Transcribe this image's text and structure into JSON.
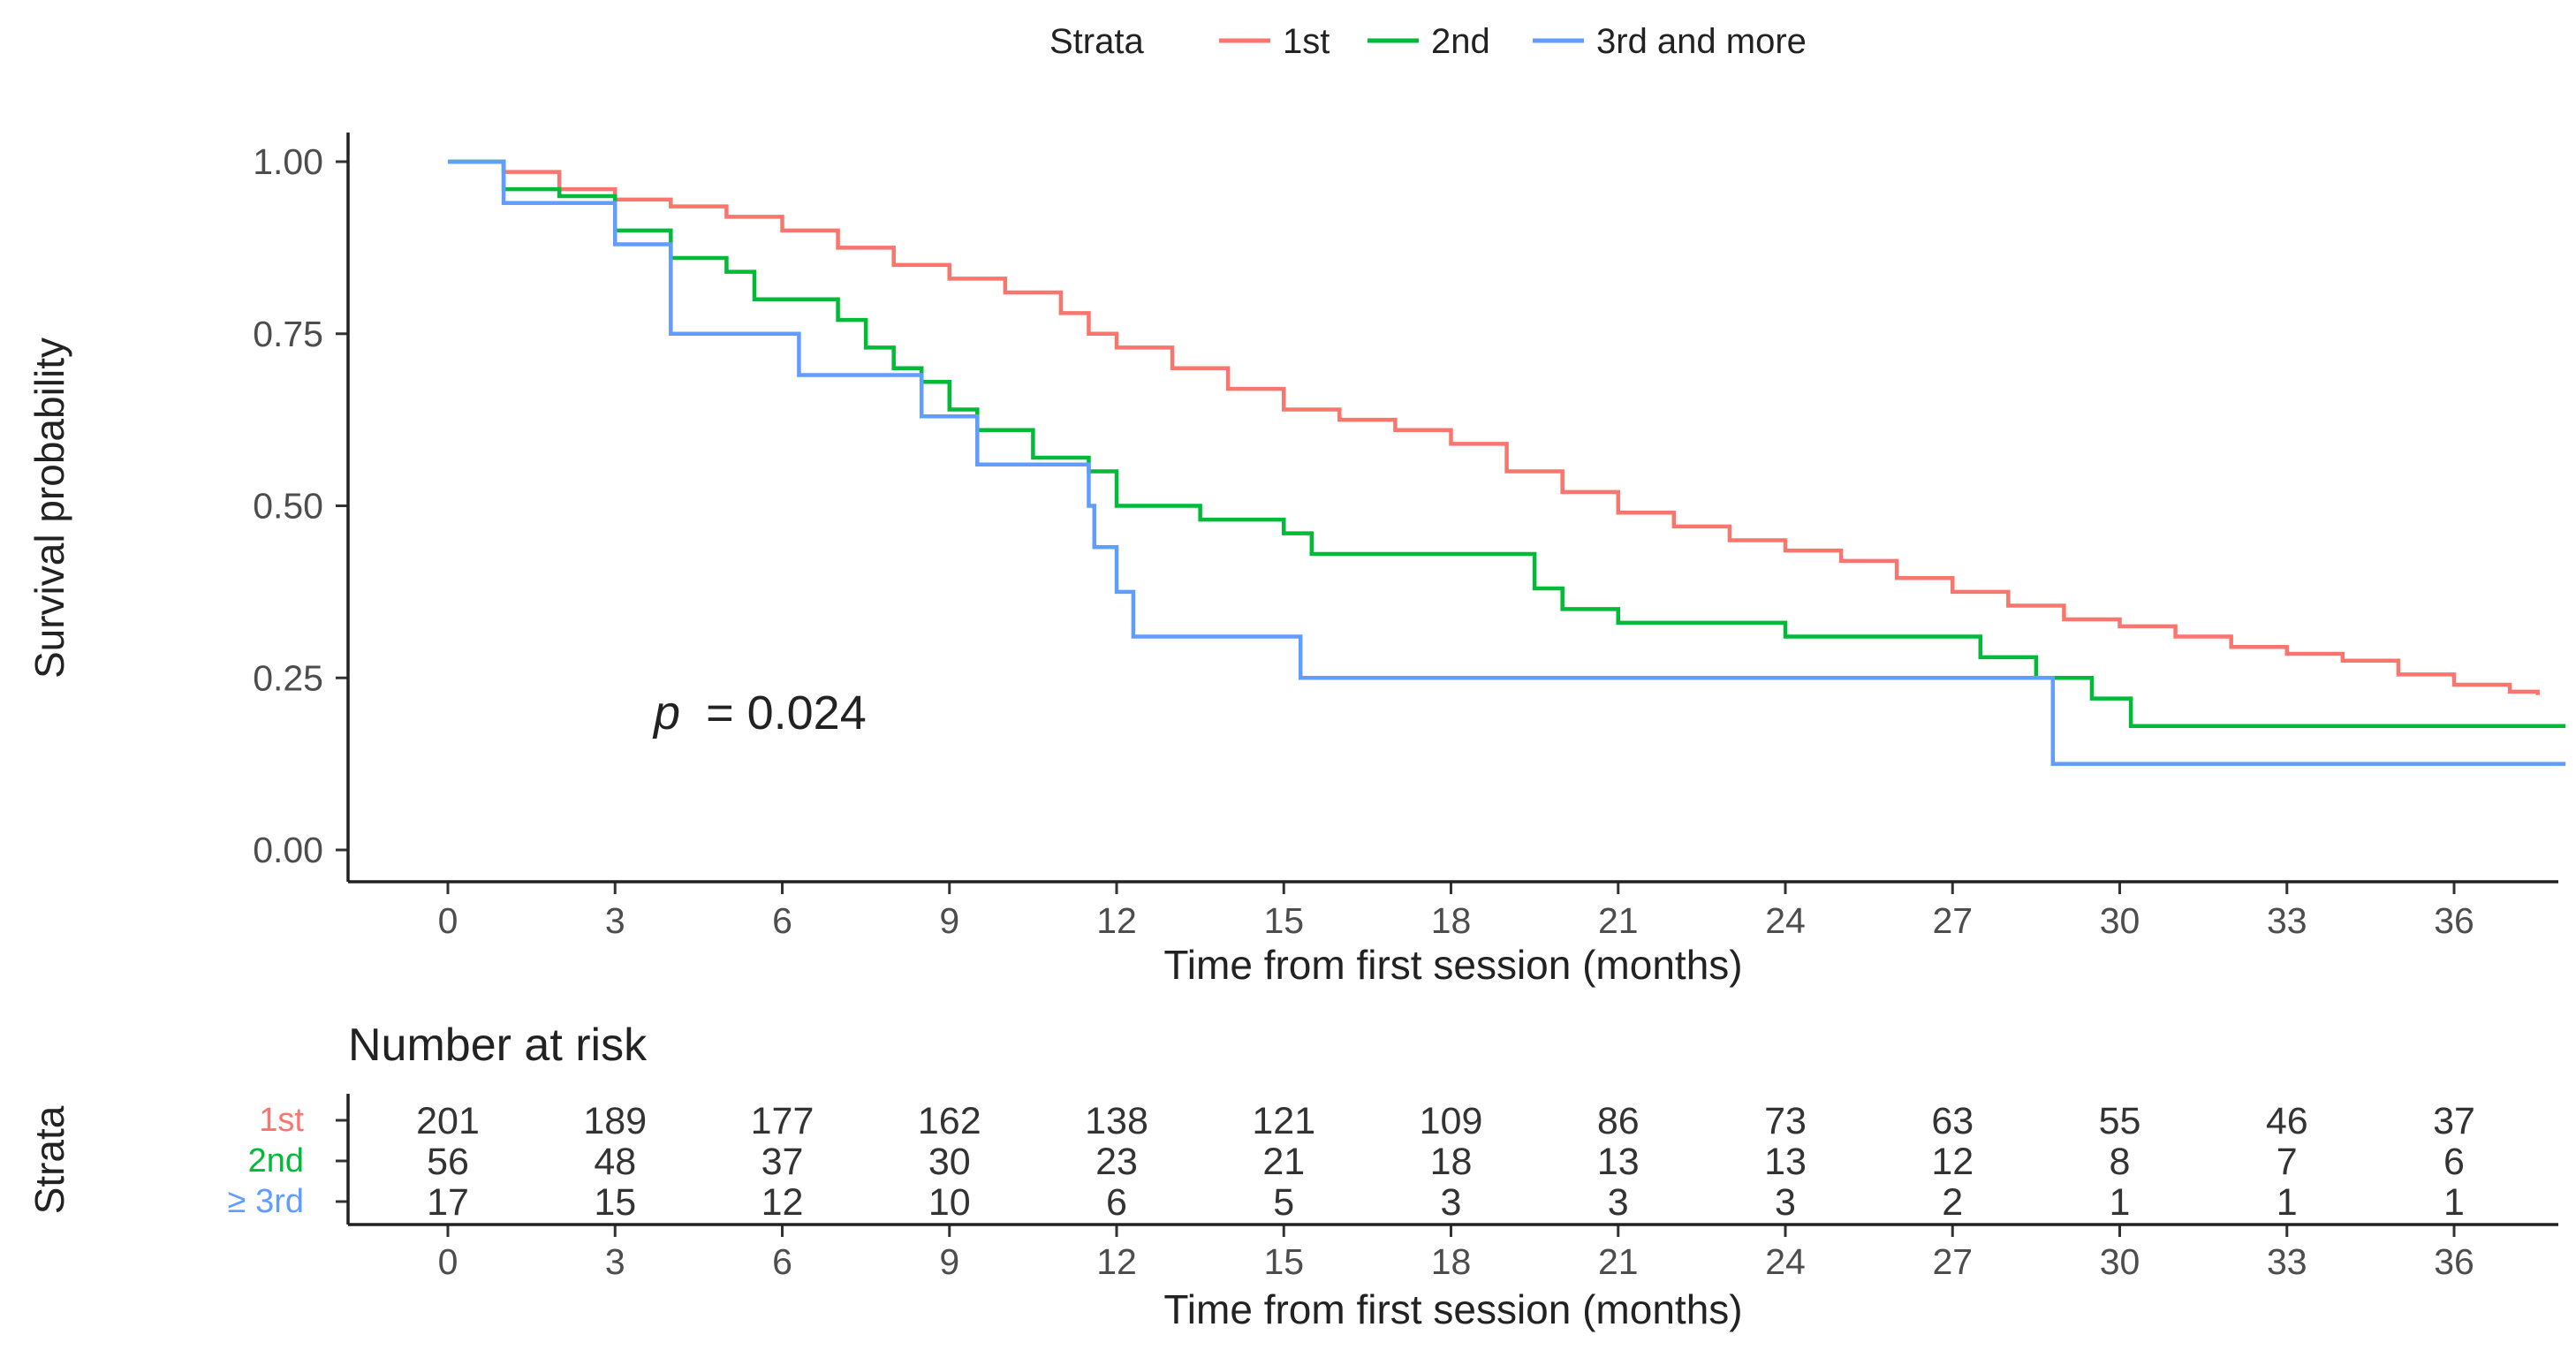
{
  "chart_data": {
    "type": "line",
    "step": true,
    "legend": {
      "title": "Strata",
      "placement": "top",
      "items": [
        "1st",
        "2nd",
        "3rd and more"
      ]
    },
    "xlabel": "Time from first session (months)",
    "ylabel": "Survival probability",
    "xlim": [
      -5,
      38
    ],
    "ylim": [
      0,
      1
    ],
    "x_ticks": [
      0,
      3,
      6,
      9,
      12,
      15,
      18,
      21,
      24,
      27,
      30,
      33,
      36
    ],
    "y_ticks": [
      "0.00",
      "0.25",
      "0.50",
      "0.75",
      "1.00"
    ],
    "p_value": {
      "symbol": "p",
      "text": "= 0.024"
    },
    "series": [
      {
        "name": "1st",
        "color": "#F8766D",
        "points": [
          [
            0,
            1.0
          ],
          [
            1,
            0.985
          ],
          [
            2,
            0.96
          ],
          [
            3,
            0.945
          ],
          [
            4,
            0.935
          ],
          [
            5,
            0.92
          ],
          [
            6,
            0.9
          ],
          [
            7,
            0.875
          ],
          [
            8,
            0.85
          ],
          [
            9,
            0.83
          ],
          [
            10,
            0.81
          ],
          [
            11,
            0.78
          ],
          [
            11.5,
            0.75
          ],
          [
            12,
            0.73
          ],
          [
            13,
            0.7
          ],
          [
            14,
            0.67
          ],
          [
            15,
            0.64
          ],
          [
            16,
            0.625
          ],
          [
            17,
            0.61
          ],
          [
            18,
            0.59
          ],
          [
            19,
            0.55
          ],
          [
            20,
            0.52
          ],
          [
            21,
            0.49
          ],
          [
            22,
            0.47
          ],
          [
            23,
            0.45
          ],
          [
            24,
            0.435
          ],
          [
            25,
            0.42
          ],
          [
            26,
            0.395
          ],
          [
            27,
            0.375
          ],
          [
            28,
            0.355
          ],
          [
            29,
            0.335
          ],
          [
            30,
            0.325
          ],
          [
            31,
            0.31
          ],
          [
            32,
            0.295
          ],
          [
            33,
            0.285
          ],
          [
            34,
            0.275
          ],
          [
            35,
            0.255
          ],
          [
            36,
            0.24
          ],
          [
            37,
            0.23
          ],
          [
            37.5,
            0.225
          ]
        ]
      },
      {
        "name": "2nd",
        "color": "#00BA38",
        "points": [
          [
            0,
            1.0
          ],
          [
            1,
            0.96
          ],
          [
            2,
            0.95
          ],
          [
            3,
            0.9
          ],
          [
            4,
            0.86
          ],
          [
            5,
            0.84
          ],
          [
            5.5,
            0.8
          ],
          [
            7,
            0.77
          ],
          [
            7.5,
            0.73
          ],
          [
            8,
            0.7
          ],
          [
            8.5,
            0.68
          ],
          [
            9,
            0.64
          ],
          [
            9.5,
            0.61
          ],
          [
            10.5,
            0.57
          ],
          [
            11.5,
            0.55
          ],
          [
            12,
            0.5
          ],
          [
            13.5,
            0.48
          ],
          [
            15,
            0.46
          ],
          [
            15.5,
            0.43
          ],
          [
            19.5,
            0.38
          ],
          [
            20,
            0.35
          ],
          [
            21,
            0.33
          ],
          [
            24,
            0.31
          ],
          [
            27.5,
            0.28
          ],
          [
            28.5,
            0.25
          ],
          [
            29.5,
            0.22
          ],
          [
            30.2,
            0.18
          ],
          [
            38,
            0.18
          ]
        ]
      },
      {
        "name": "3rd and more",
        "color": "#619CFF",
        "points": [
          [
            0,
            1.0
          ],
          [
            1,
            0.94
          ],
          [
            3,
            0.88
          ],
          [
            4,
            0.75
          ],
          [
            6.3,
            0.69
          ],
          [
            8.5,
            0.63
          ],
          [
            9.5,
            0.56
          ],
          [
            11.5,
            0.5
          ],
          [
            11.6,
            0.44
          ],
          [
            12.0,
            0.375
          ],
          [
            12.3,
            0.31
          ],
          [
            15.3,
            0.25
          ],
          [
            28.8,
            0.125
          ],
          [
            38,
            0.125
          ]
        ]
      }
    ],
    "risk_table": {
      "title": "Number at risk",
      "ylabel": "Strata",
      "xlabel": "Time from first session (months)",
      "times": [
        0,
        3,
        6,
        9,
        12,
        15,
        18,
        21,
        24,
        27,
        30,
        33,
        36
      ],
      "rows": [
        {
          "label": "1st",
          "color": "#F8766D",
          "values": [
            201,
            189,
            177,
            162,
            138,
            121,
            109,
            86,
            73,
            63,
            55,
            46,
            37
          ]
        },
        {
          "label": "2nd",
          "color": "#00BA38",
          "values": [
            56,
            48,
            37,
            30,
            23,
            21,
            18,
            13,
            13,
            12,
            8,
            7,
            6
          ]
        },
        {
          "label": "≥ 3rd",
          "color": "#619CFF",
          "values": [
            17,
            15,
            12,
            10,
            6,
            5,
            3,
            3,
            3,
            2,
            1,
            1,
            1
          ]
        }
      ]
    }
  }
}
